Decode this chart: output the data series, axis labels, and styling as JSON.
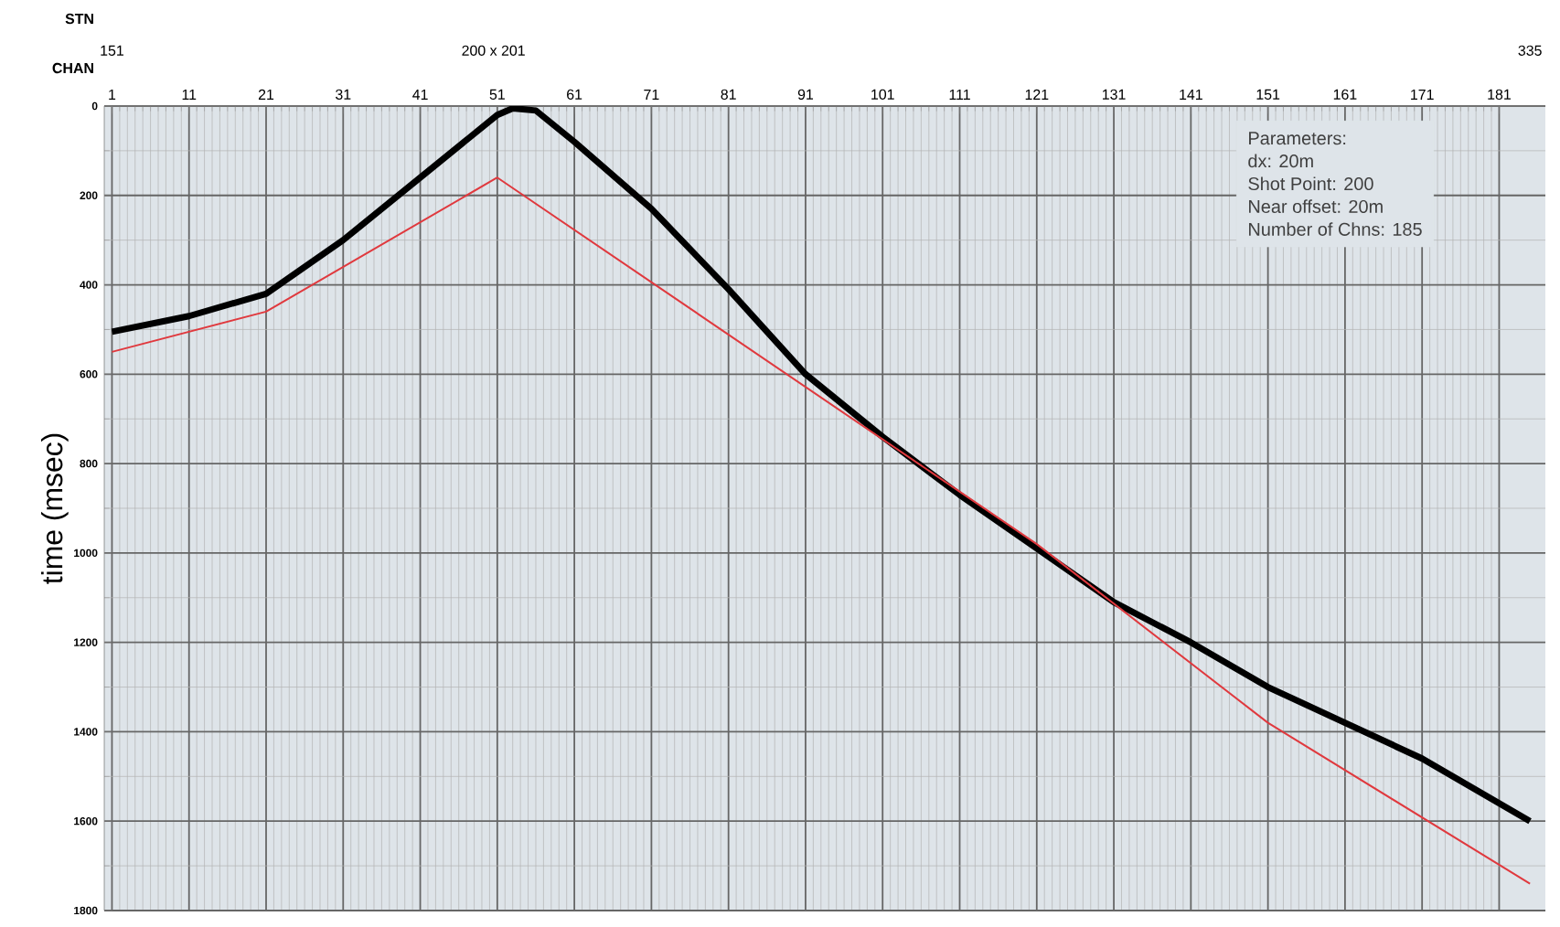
{
  "chart_data": {
    "type": "line",
    "xlabel": "CHAN",
    "x2label": "STN",
    "ylabel": "time (msec)",
    "xlim": [
      0,
      187
    ],
    "xticks": [
      1,
      11,
      21,
      31,
      41,
      51,
      61,
      71,
      81,
      91,
      101,
      111,
      121,
      131,
      141,
      151,
      161,
      171,
      181
    ],
    "x2lim": [
      150,
      337
    ],
    "x2ticks": [
      151,
      {
        "value": 200.5,
        "label": "200 x 201"
      },
      335
    ],
    "ylim": [
      1800,
      0
    ],
    "yticks": [
      0,
      200,
      400,
      600,
      800,
      1000,
      1200,
      1400,
      1600,
      1800
    ],
    "grid": true,
    "series": [
      {
        "color": "#000000",
        "x": [
          1,
          11,
          21,
          31,
          41,
          51,
          53,
          56,
          61,
          71,
          81,
          91,
          101,
          111,
          121,
          131,
          141,
          151,
          161,
          171,
          185
        ],
        "values": [
          505,
          470,
          420,
          300,
          160,
          20,
          5,
          10,
          80,
          230,
          410,
          600,
          740,
          870,
          990,
          1110,
          1200,
          1300,
          1380,
          1460,
          1600
        ]
      },
      {
        "color": "#e0393e",
        "x": [
          1,
          21,
          51,
          121,
          151,
          185
        ],
        "values": [
          550,
          460,
          160,
          980,
          1380,
          1740
        ]
      }
    ],
    "annotations": [
      "Parameters:",
      "dx: 20m",
      "Shot Point: 200",
      "Near offset: 20m",
      "Number of Chns: 185"
    ]
  }
}
